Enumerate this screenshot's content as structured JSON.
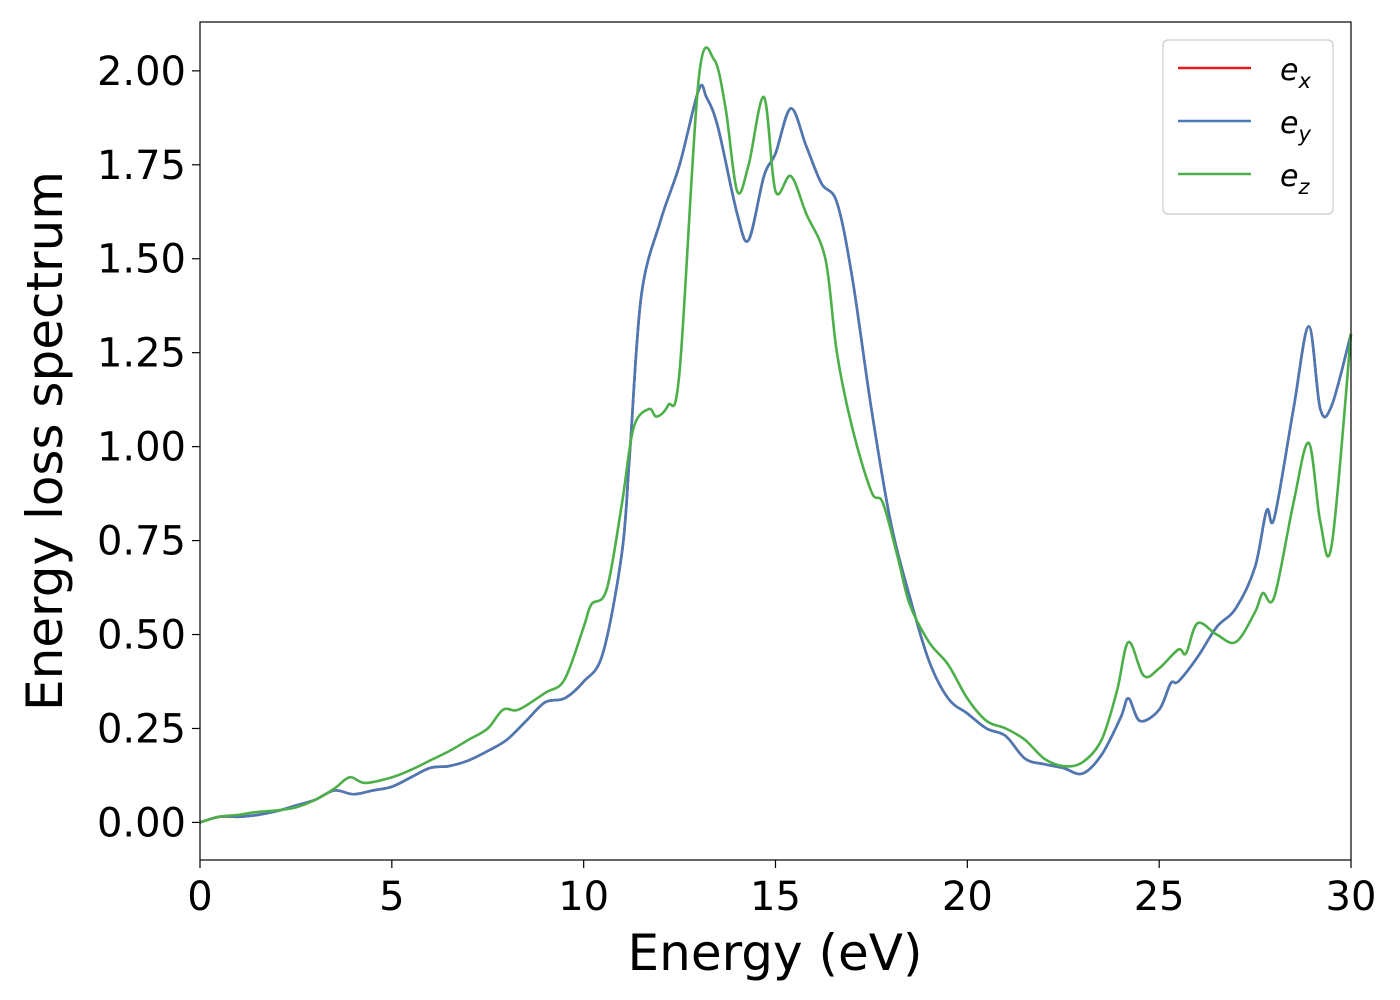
{
  "chart_data": {
    "type": "line",
    "title": "",
    "xlabel": "Energy (eV)",
    "ylabel": "Energy loss spectrum",
    "xlim": [
      0,
      30
    ],
    "ylim": [
      -0.1,
      2.13
    ],
    "xticks": [
      0,
      5,
      10,
      15,
      20,
      25,
      30
    ],
    "xtick_labels": [
      "0",
      "5",
      "10",
      "15",
      "20",
      "25",
      "30"
    ],
    "yticks": [
      0.0,
      0.25,
      0.5,
      0.75,
      1.0,
      1.25,
      1.5,
      1.75,
      2.0
    ],
    "ytick_labels": [
      "0.00",
      "0.25",
      "0.50",
      "0.75",
      "1.00",
      "1.25",
      "1.50",
      "1.75",
      "2.00"
    ],
    "grid": false,
    "legend_position": "top-right",
    "series": [
      {
        "name": "e",
        "subscript": "x",
        "color": "#e41a1c",
        "x": [
          0,
          0.5,
          1,
          1.5,
          2,
          2.5,
          3,
          3.5,
          4,
          4.5,
          5,
          5.5,
          6,
          6.5,
          7,
          7.5,
          8,
          8.5,
          9,
          9.5,
          10,
          10.5,
          11,
          11.2,
          11.5,
          12,
          12.5,
          13,
          13.2,
          13.5,
          14,
          14.3,
          14.7,
          15,
          15.4,
          15.8,
          16.2,
          16.6,
          17,
          17.5,
          18,
          18.5,
          19,
          19.5,
          20,
          20.5,
          21,
          21.5,
          22,
          22.5,
          23,
          23.5,
          24,
          24.2,
          24.5,
          25,
          25.3,
          25.5,
          26,
          26.5,
          27,
          27.5,
          27.8,
          28,
          28.5,
          28.9,
          29.2,
          29.5,
          30
        ],
        "y": [
          0,
          0.015,
          0.015,
          0.02,
          0.03,
          0.045,
          0.06,
          0.085,
          0.075,
          0.085,
          0.095,
          0.12,
          0.145,
          0.15,
          0.165,
          0.19,
          0.22,
          0.27,
          0.32,
          0.33,
          0.375,
          0.45,
          0.72,
          0.98,
          1.4,
          1.6,
          1.75,
          1.95,
          1.93,
          1.85,
          1.62,
          1.55,
          1.72,
          1.78,
          1.9,
          1.8,
          1.7,
          1.65,
          1.45,
          1.1,
          0.8,
          0.6,
          0.43,
          0.33,
          0.29,
          0.25,
          0.23,
          0.17,
          0.155,
          0.145,
          0.13,
          0.18,
          0.28,
          0.33,
          0.27,
          0.3,
          0.37,
          0.375,
          0.44,
          0.52,
          0.57,
          0.68,
          0.83,
          0.81,
          1.1,
          1.32,
          1.1,
          1.11,
          1.3
        ]
      },
      {
        "name": "e",
        "subscript": "y",
        "color": "#4a7ab5",
        "x": [
          0,
          0.5,
          1,
          1.5,
          2,
          2.5,
          3,
          3.5,
          4,
          4.5,
          5,
          5.5,
          6,
          6.5,
          7,
          7.5,
          8,
          8.5,
          9,
          9.5,
          10,
          10.5,
          11,
          11.2,
          11.5,
          12,
          12.5,
          13,
          13.2,
          13.5,
          14,
          14.3,
          14.7,
          15,
          15.4,
          15.8,
          16.2,
          16.6,
          17,
          17.5,
          18,
          18.5,
          19,
          19.5,
          20,
          20.5,
          21,
          21.5,
          22,
          22.5,
          23,
          23.5,
          24,
          24.2,
          24.5,
          25,
          25.3,
          25.5,
          26,
          26.5,
          27,
          27.5,
          27.8,
          28,
          28.5,
          28.9,
          29.2,
          29.5,
          30
        ],
        "y": [
          0,
          0.015,
          0.015,
          0.02,
          0.03,
          0.045,
          0.06,
          0.085,
          0.075,
          0.085,
          0.095,
          0.12,
          0.145,
          0.15,
          0.165,
          0.19,
          0.22,
          0.27,
          0.32,
          0.33,
          0.375,
          0.45,
          0.72,
          0.98,
          1.4,
          1.6,
          1.75,
          1.95,
          1.93,
          1.85,
          1.62,
          1.55,
          1.72,
          1.78,
          1.9,
          1.8,
          1.7,
          1.65,
          1.45,
          1.1,
          0.8,
          0.6,
          0.43,
          0.33,
          0.29,
          0.25,
          0.23,
          0.17,
          0.155,
          0.145,
          0.13,
          0.18,
          0.28,
          0.33,
          0.27,
          0.3,
          0.37,
          0.375,
          0.44,
          0.52,
          0.57,
          0.68,
          0.83,
          0.81,
          1.1,
          1.32,
          1.1,
          1.11,
          1.3
        ]
      },
      {
        "name": "e",
        "subscript": "z",
        "color": "#4daf4a",
        "x": [
          0,
          0.5,
          1,
          1.5,
          2,
          2.5,
          3,
          3.5,
          3.9,
          4.3,
          5,
          5.5,
          6,
          6.5,
          7,
          7.5,
          7.9,
          8.3,
          9,
          9.5,
          10,
          10.2,
          10.6,
          11,
          11.3,
          11.7,
          11.9,
          12.2,
          12.5,
          13,
          13.4,
          13.7,
          14,
          14.3,
          14.7,
          15,
          15.4,
          15.8,
          16.3,
          16.6,
          17,
          17.5,
          17.8,
          18.2,
          18.5,
          19,
          19.5,
          20,
          20.5,
          21,
          21.5,
          22,
          22.5,
          23,
          23.5,
          23.9,
          24.2,
          24.6,
          25,
          25.5,
          25.7,
          26,
          26.5,
          27,
          27.5,
          27.7,
          28,
          28.5,
          28.9,
          29.2,
          29.5,
          30
        ],
        "y": [
          0,
          0.015,
          0.02,
          0.028,
          0.032,
          0.04,
          0.06,
          0.09,
          0.12,
          0.105,
          0.12,
          0.14,
          0.165,
          0.19,
          0.22,
          0.25,
          0.3,
          0.3,
          0.345,
          0.38,
          0.52,
          0.58,
          0.62,
          0.85,
          1.05,
          1.1,
          1.08,
          1.11,
          1.2,
          1.98,
          2.03,
          1.9,
          1.68,
          1.75,
          1.93,
          1.68,
          1.72,
          1.62,
          1.5,
          1.25,
          1.05,
          0.88,
          0.85,
          0.7,
          0.58,
          0.48,
          0.42,
          0.33,
          0.27,
          0.25,
          0.22,
          0.17,
          0.15,
          0.16,
          0.22,
          0.35,
          0.48,
          0.39,
          0.41,
          0.46,
          0.45,
          0.53,
          0.5,
          0.48,
          0.56,
          0.61,
          0.6,
          0.85,
          1.01,
          0.8,
          0.74,
          1.3
        ]
      }
    ]
  }
}
